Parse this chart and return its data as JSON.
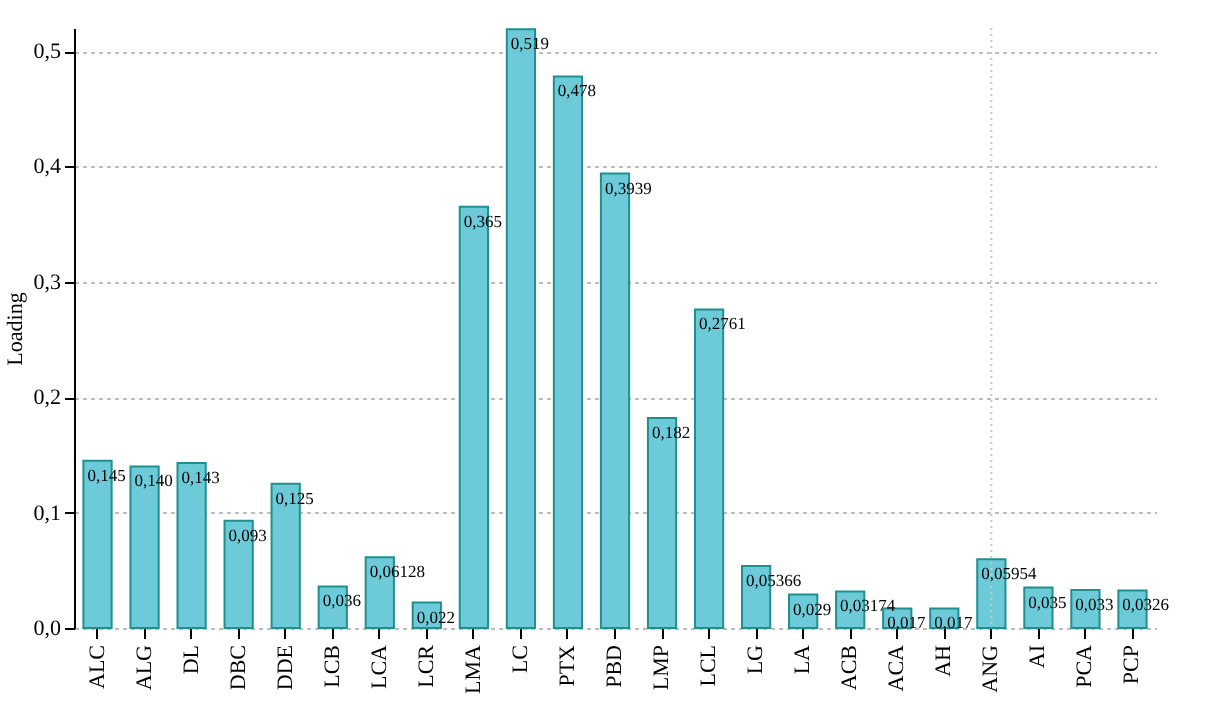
{
  "chart_data": {
    "type": "bar",
    "ylabel": "Loading",
    "categories": [
      "ALC",
      "ALG",
      "DL",
      "DBC",
      "DDE",
      "LCB",
      "LCA",
      "LCR",
      "LMA",
      "LC",
      "PTX",
      "PBD",
      "LMP",
      "LCL",
      "LG",
      "LA",
      "ACB",
      "ACA",
      "AH",
      "ANG",
      "AI",
      "PCA",
      "PCP"
    ],
    "values": [
      0.145,
      0.14,
      0.143,
      0.093,
      0.125,
      0.036,
      0.06128,
      0.022,
      0.365,
      0.519,
      0.478,
      0.3939,
      0.182,
      0.2761,
      0.05366,
      0.029,
      0.03174,
      0.017,
      0.017,
      0.05954,
      0.035,
      0.033,
      0.0326
    ],
    "value_labels": [
      "0,145",
      "0,140",
      "0,143",
      "0,093",
      "0,125",
      "0,036",
      "0,06128",
      "0,022",
      "0,365",
      "0,519",
      "0,478",
      "0,3939",
      "0,182",
      "0,2761",
      "0,05366",
      "0,029",
      "0,03174",
      "0,017",
      "0,017",
      "0,05954",
      "0,035",
      "0,033",
      "0,0326"
    ],
    "color": "#6dcbd9",
    "ylim": [
      0,
      0.52
    ],
    "yticks": [
      {
        "value": 0,
        "label": "0,0"
      },
      {
        "value": 0.1,
        "label": "0,1"
      },
      {
        "value": 0.2,
        "label": "0,2"
      },
      {
        "value": 0.3,
        "label": "0,3"
      },
      {
        "value": 0.4,
        "label": "0,4"
      },
      {
        "value": 0.5,
        "label": "0,5"
      }
    ],
    "grid": "y",
    "ref_lines": [
      {
        "axis": "x",
        "value": "ANG",
        "color": "#c8c8c8",
        "line_style": "dotted"
      }
    ]
  }
}
